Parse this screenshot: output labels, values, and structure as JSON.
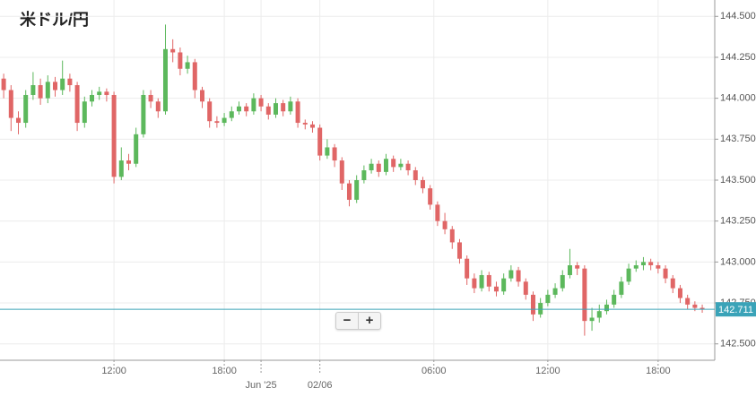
{
  "chart_data": {
    "type": "candlestick",
    "title": "米ドル/円",
    "xlim": [
      -0.5,
      96.7
    ],
    "xticks": [
      {
        "value": 15,
        "label": "12:00"
      },
      {
        "value": 30,
        "label": "18:00"
      },
      {
        "value": 35,
        "label": "Jun '25"
      },
      {
        "value": 43,
        "label": "02/06"
      },
      {
        "value": 58.5,
        "label": "06:00"
      },
      {
        "value": 74,
        "label": "12:00"
      },
      {
        "value": 89,
        "label": "18:00"
      }
    ],
    "ylim": [
      142.4,
      144.6
    ],
    "yticks": [
      {
        "value": 142.5,
        "label": "142.500"
      },
      {
        "value": 142.75,
        "label": "142.750"
      },
      {
        "value": 143,
        "label": "143.000"
      },
      {
        "value": 143.25,
        "label": "143.250"
      },
      {
        "value": 143.5,
        "label": "143.500"
      },
      {
        "value": 143.75,
        "label": "143.750"
      },
      {
        "value": 144,
        "label": "144.000"
      },
      {
        "value": 144.25,
        "label": "144.250"
      },
      {
        "value": 144.5,
        "label": "144.500"
      }
    ],
    "grid": true,
    "up_color": "#5cb85c",
    "down_color": "#e06666",
    "current_price": 142.711,
    "current_color": "#3aa3b8",
    "open": [
      144.12,
      144.05,
      143.88,
      143.85,
      144.02,
      144.08,
      144.0,
      144.1,
      144.05,
      144.12,
      144.08,
      143.85,
      143.98,
      144.02,
      144.04,
      144.02,
      143.52,
      143.62,
      143.6,
      143.78,
      144.02,
      143.98,
      143.92,
      144.3,
      144.28,
      144.18,
      144.22,
      144.05,
      143.98,
      143.86,
      143.85,
      143.88,
      143.92,
      143.95,
      143.92,
      144.0,
      143.95,
      143.9,
      143.97,
      143.92,
      143.98,
      143.85,
      143.84,
      143.82,
      143.65,
      143.7,
      143.62,
      143.48,
      143.38,
      143.5,
      143.56,
      143.6,
      143.55,
      143.63,
      143.58,
      143.6,
      143.56,
      143.5,
      143.45,
      143.35,
      143.25,
      143.2,
      143.12,
      143.02,
      142.9,
      142.84,
      142.92,
      142.85,
      142.82,
      142.9,
      142.95,
      142.88,
      142.8,
      142.68,
      142.75,
      142.8,
      142.84,
      142.92,
      142.98,
      142.96,
      142.64,
      142.66,
      142.7,
      142.74,
      142.8,
      142.88,
      142.96,
      142.98,
      143.0,
      142.98,
      142.96,
      142.9,
      142.84,
      142.78,
      142.74,
      142.72
    ],
    "high": [
      144.15,
      144.08,
      143.92,
      144.05,
      144.16,
      144.12,
      144.14,
      144.13,
      144.23,
      144.15,
      144.1,
      144.01,
      144.05,
      144.07,
      144.06,
      144.04,
      143.7,
      143.66,
      143.82,
      144.05,
      144.05,
      144.0,
      144.45,
      144.36,
      144.31,
      144.26,
      144.24,
      144.07,
      144.0,
      143.89,
      143.91,
      143.95,
      143.98,
      143.97,
      144.03,
      144.02,
      143.97,
      144.0,
      143.99,
      144.01,
      144.0,
      143.87,
      143.86,
      143.84,
      143.75,
      143.72,
      143.64,
      143.5,
      143.53,
      143.59,
      143.63,
      143.62,
      143.66,
      143.65,
      143.63,
      143.62,
      143.58,
      143.52,
      143.47,
      143.37,
      143.3,
      143.22,
      143.14,
      143.04,
      142.93,
      142.95,
      142.94,
      142.88,
      142.93,
      142.98,
      142.97,
      142.9,
      142.82,
      142.78,
      142.83,
      142.87,
      142.95,
      143.08,
      143.0,
      142.98,
      142.72,
      142.74,
      142.77,
      142.83,
      142.91,
      142.99,
      143.01,
      143.03,
      143.02,
      143.0,
      142.98,
      142.92,
      142.86,
      142.8,
      142.76,
      142.74
    ],
    "low": [
      144.0,
      143.8,
      143.78,
      143.82,
      143.99,
      143.96,
      143.97,
      144.01,
      144.02,
      144.04,
      143.8,
      143.82,
      143.95,
      143.99,
      143.98,
      143.48,
      143.5,
      143.56,
      143.58,
      143.76,
      143.94,
      143.88,
      143.9,
      144.22,
      144.14,
      144.15,
      144.0,
      143.94,
      143.82,
      143.82,
      143.83,
      143.86,
      143.9,
      143.89,
      143.9,
      143.92,
      143.87,
      143.88,
      143.89,
      143.9,
      143.82,
      143.81,
      143.79,
      143.62,
      143.63,
      143.58,
      143.44,
      143.34,
      143.36,
      143.48,
      143.54,
      143.52,
      143.53,
      143.55,
      143.56,
      143.53,
      143.47,
      143.42,
      143.32,
      143.22,
      143.17,
      143.08,
      142.99,
      142.86,
      142.81,
      142.82,
      142.82,
      142.79,
      142.8,
      142.88,
      142.85,
      142.77,
      142.64,
      142.66,
      142.73,
      142.78,
      142.82,
      142.9,
      142.92,
      142.55,
      142.58,
      142.63,
      142.68,
      142.72,
      142.78,
      142.86,
      142.94,
      142.95,
      142.95,
      142.93,
      142.87,
      142.81,
      142.75,
      142.71,
      142.7,
      142.69
    ],
    "close": [
      144.05,
      143.88,
      143.85,
      144.02,
      144.08,
      144.0,
      144.1,
      144.05,
      144.12,
      144.08,
      143.85,
      143.98,
      144.02,
      144.04,
      144.02,
      143.52,
      143.62,
      143.6,
      143.78,
      144.02,
      143.98,
      143.92,
      144.3,
      144.28,
      144.18,
      144.22,
      144.05,
      143.98,
      143.86,
      143.85,
      143.88,
      143.92,
      143.95,
      143.92,
      144.0,
      143.95,
      143.9,
      143.97,
      143.92,
      143.98,
      143.85,
      143.84,
      143.82,
      143.65,
      143.7,
      143.62,
      143.48,
      143.38,
      143.5,
      143.56,
      143.6,
      143.55,
      143.63,
      143.58,
      143.6,
      143.56,
      143.5,
      143.45,
      143.35,
      143.25,
      143.2,
      143.12,
      143.02,
      142.9,
      142.84,
      142.92,
      142.85,
      142.82,
      142.9,
      142.95,
      142.88,
      142.8,
      142.68,
      142.75,
      142.8,
      142.84,
      142.92,
      142.98,
      142.96,
      142.64,
      142.66,
      142.7,
      142.74,
      142.8,
      142.88,
      142.96,
      142.98,
      143.0,
      142.98,
      142.96,
      142.9,
      142.84,
      142.78,
      142.74,
      142.72,
      142.71
    ]
  },
  "controls": {
    "zoom_out": "−",
    "zoom_in": "+"
  }
}
